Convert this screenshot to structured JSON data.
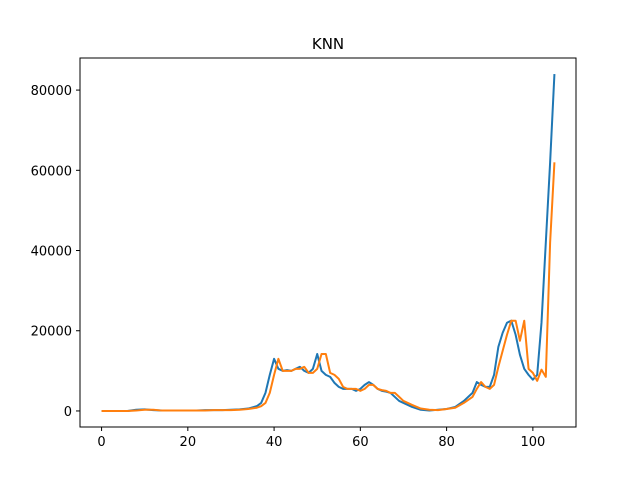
{
  "chart_data": {
    "type": "line",
    "title": "KNN",
    "xlabel": "",
    "ylabel": "",
    "xlim": [
      -5,
      110
    ],
    "ylim": [
      -4000,
      88000
    ],
    "xticks": [
      0,
      20,
      40,
      60,
      80,
      100
    ],
    "yticks": [
      0,
      20000,
      40000,
      60000,
      80000
    ],
    "grid": false,
    "legend": "none",
    "series": [
      {
        "color": "#1f77b4",
        "x": [
          0,
          2,
          4,
          6,
          8,
          10,
          12,
          14,
          16,
          18,
          20,
          22,
          24,
          26,
          28,
          30,
          32,
          34,
          36,
          37,
          38,
          39,
          40,
          41,
          42,
          43,
          44,
          45,
          46,
          47,
          48,
          49,
          50,
          51,
          52,
          53,
          54,
          55,
          56,
          57,
          58,
          59,
          60,
          61,
          62,
          63,
          64,
          65,
          66,
          67,
          68,
          69,
          70,
          72,
          74,
          76,
          78,
          80,
          82,
          84,
          86,
          87,
          88,
          89,
          90,
          91,
          92,
          93,
          94,
          95,
          96,
          97,
          98,
          99,
          100,
          101,
          102,
          103,
          104,
          105
        ],
        "y": [
          0,
          0,
          0,
          0,
          300,
          400,
          200,
          100,
          100,
          100,
          100,
          100,
          200,
          200,
          200,
          300,
          400,
          600,
          1200,
          2000,
          4500,
          9000,
          13000,
          10500,
          10000,
          10200,
          10000,
          10500,
          11000,
          10000,
          9500,
          10500,
          14200,
          10000,
          9000,
          8500,
          7000,
          6000,
          5500,
          5500,
          5500,
          5000,
          5500,
          6500,
          7200,
          6500,
          5500,
          5000,
          4800,
          4500,
          3500,
          2500,
          2000,
          1000,
          300,
          100,
          300,
          500,
          1000,
          2500,
          4500,
          7200,
          6500,
          6000,
          6000,
          9000,
          16000,
          19500,
          22000,
          22500,
          19000,
          14000,
          10500,
          9000,
          7800,
          9000,
          22000,
          42000,
          62000,
          84000
        ]
      },
      {
        "color": "#ff7f0e",
        "x": [
          0,
          2,
          4,
          6,
          8,
          10,
          12,
          14,
          16,
          18,
          20,
          22,
          24,
          26,
          28,
          30,
          32,
          34,
          36,
          37,
          38,
          39,
          40,
          41,
          42,
          43,
          44,
          45,
          46,
          47,
          48,
          49,
          50,
          51,
          52,
          53,
          54,
          55,
          56,
          57,
          58,
          59,
          60,
          61,
          62,
          63,
          64,
          65,
          66,
          67,
          68,
          69,
          70,
          72,
          74,
          76,
          78,
          80,
          82,
          84,
          86,
          87,
          88,
          89,
          90,
          91,
          92,
          93,
          94,
          95,
          96,
          97,
          98,
          99,
          100,
          101,
          102,
          103,
          104,
          105
        ],
        "y": [
          0,
          0,
          0,
          0,
          100,
          300,
          300,
          100,
          100,
          100,
          100,
          100,
          100,
          200,
          200,
          200,
          300,
          500,
          800,
          1200,
          2000,
          4500,
          9000,
          13000,
          10000,
          10000,
          10000,
          10500,
          10500,
          11000,
          9500,
          9500,
          10500,
          14200,
          14200,
          9500,
          9000,
          8000,
          6000,
          5500,
          5500,
          5500,
          5000,
          5500,
          6500,
          6500,
          5500,
          5200,
          5000,
          4500,
          4500,
          3500,
          2500,
          1500,
          600,
          300,
          200,
          500,
          800,
          2000,
          3500,
          5500,
          7200,
          6000,
          5500,
          6500,
          11000,
          15000,
          19000,
          22500,
          22500,
          17500,
          22500,
          10500,
          9500,
          7500,
          10300,
          8500,
          42000,
          62000
        ]
      }
    ]
  }
}
